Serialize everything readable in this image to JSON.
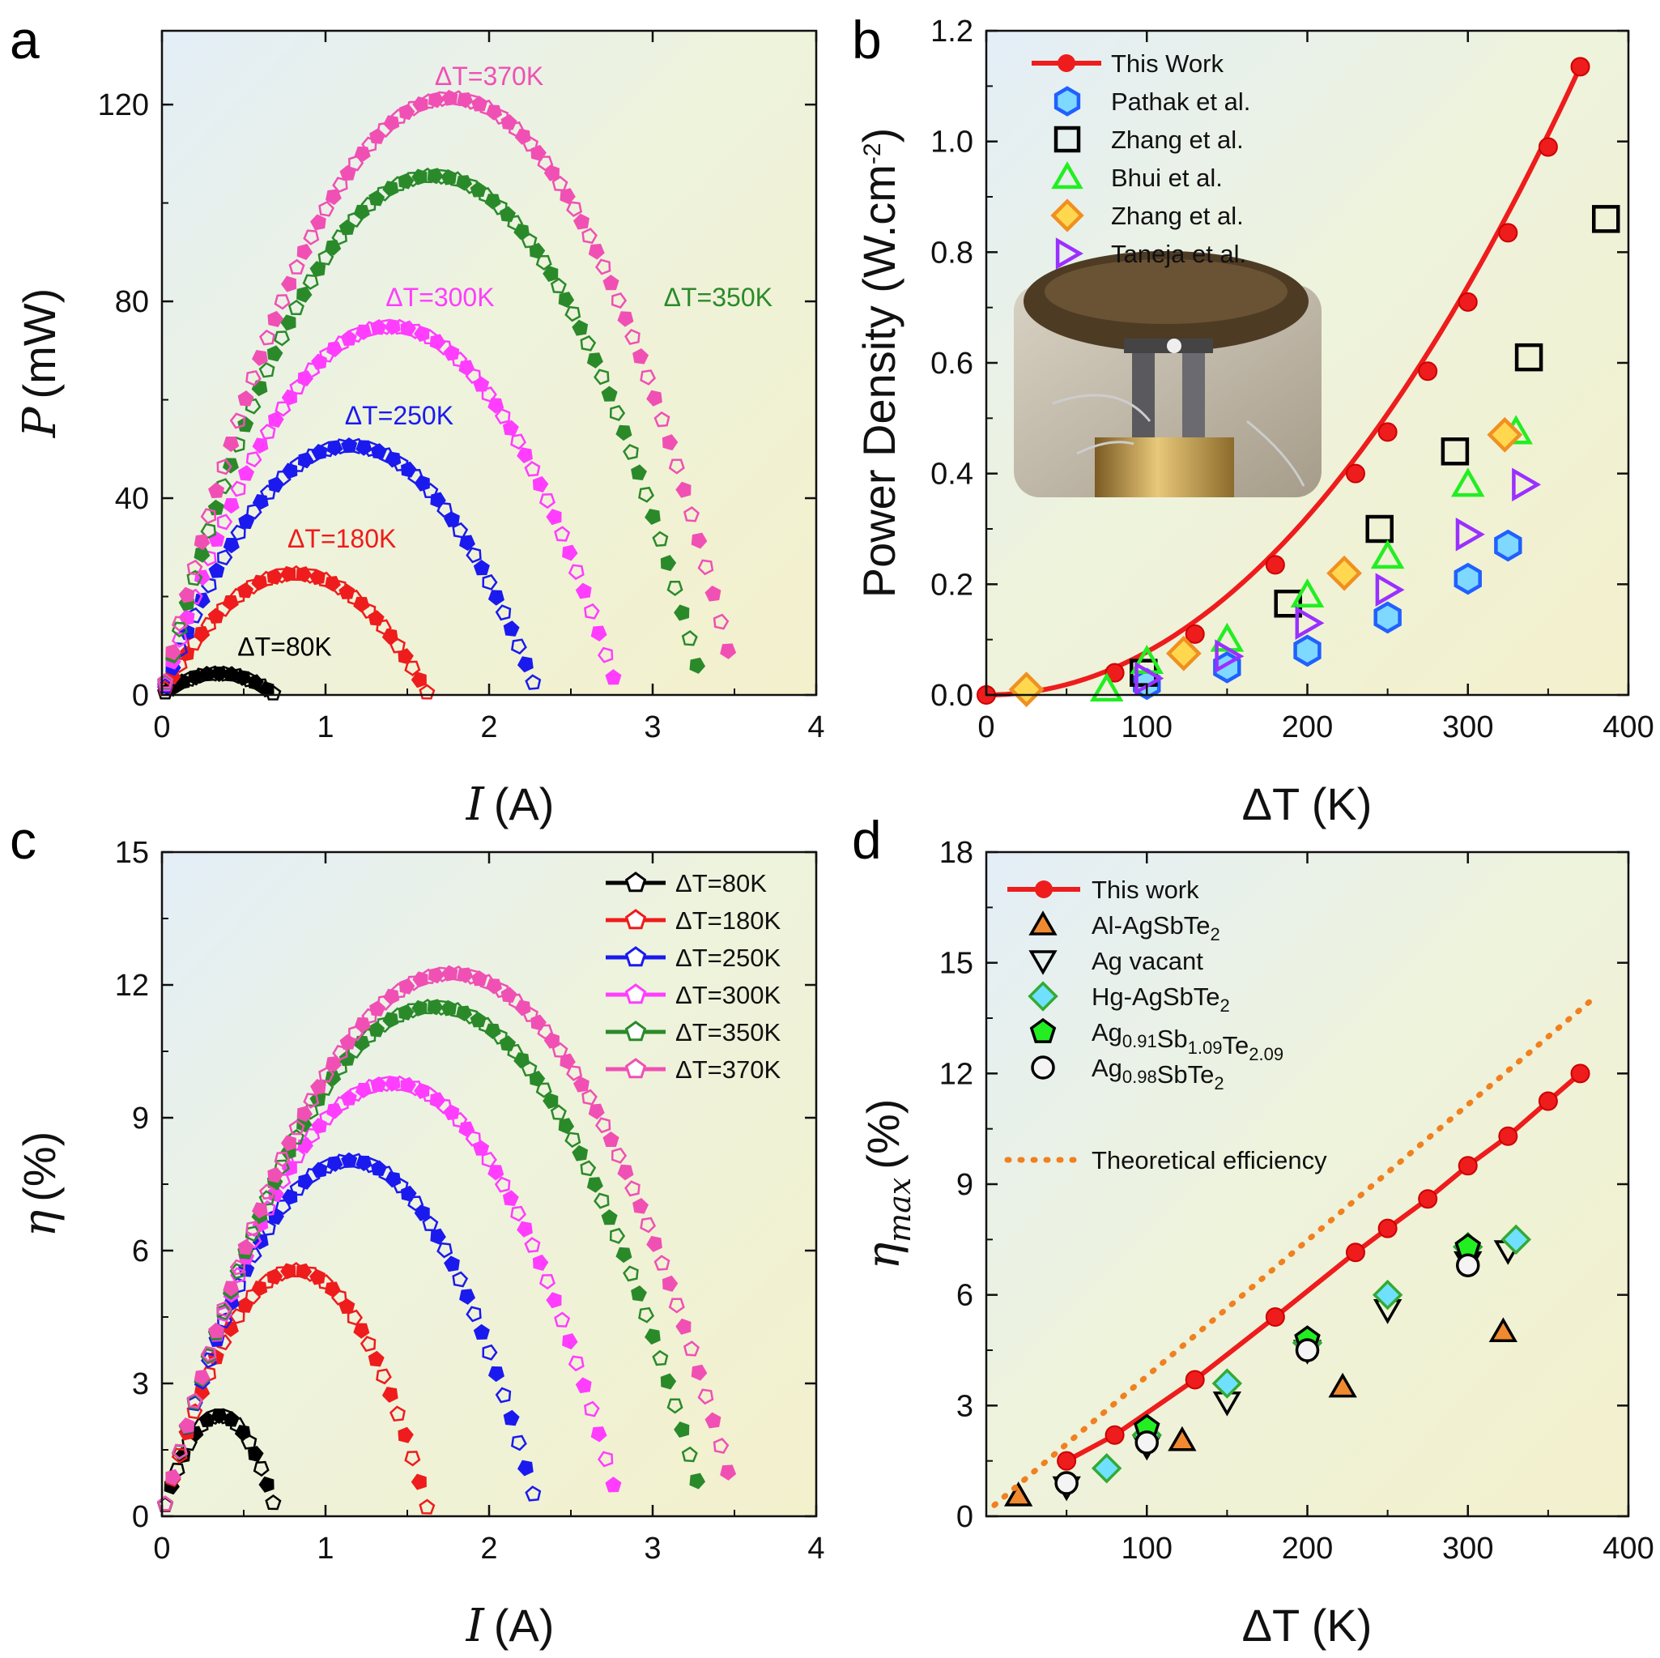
{
  "colors": {
    "dT80": "#000000",
    "dT180": "#ee1c1c",
    "dT250": "#1a1aee",
    "dT300": "#ff3dff",
    "dT350": "#2a8a2a",
    "dT370": "#f050b4",
    "this_work": "#ee1c1c",
    "theoretical": "#f08020"
  },
  "chart_data": [
    {
      "panel": "a",
      "type": "scatter",
      "xlabel": {
        "symbol": "I",
        "unit": "(A)"
      },
      "ylabel": {
        "symbol": "P",
        "unit": "(mW)"
      },
      "xlim": [
        0,
        4
      ],
      "ylim": [
        0,
        135
      ],
      "xticks": [
        "0",
        "1",
        "2",
        "3",
        "4"
      ],
      "yticks": [
        "0",
        "40",
        "80",
        "120"
      ],
      "series": [
        {
          "name": "ΔT=80K",
          "color": "#000000",
          "Imax": 0.68,
          "peak": 4.3,
          "end": 0.3
        },
        {
          "name": "ΔT=180K",
          "color": "#ee1c1c",
          "Imax": 1.62,
          "peak": 24.5,
          "end": 0.5
        },
        {
          "name": "ΔT=250K",
          "color": "#1a1aee",
          "Imax": 2.27,
          "peak": 50,
          "end": 2.5
        },
        {
          "name": "ΔT=300K",
          "color": "#ff3dff",
          "Imax": 2.76,
          "peak": 74,
          "end": 3.5
        },
        {
          "name": "ΔT=350K",
          "color": "#2a8a2a",
          "Imax": 3.27,
          "peak": 104,
          "end": 6
        },
        {
          "name": "ΔT=370K",
          "color": "#f050b4",
          "Imax": 3.46,
          "peak": 119,
          "end": 9
        }
      ],
      "annotations": [
        {
          "text": "ΔT=80K",
          "color": "#000000",
          "x": 0.75,
          "y": 8
        },
        {
          "text": "ΔT=180K",
          "color": "#ee1c1c",
          "x": 1.1,
          "y": 30
        },
        {
          "text": "ΔT=250K",
          "color": "#1a1aee",
          "x": 1.45,
          "y": 55
        },
        {
          "text": "ΔT=300K",
          "color": "#ff3dff",
          "x": 1.7,
          "y": 79
        },
        {
          "text": "ΔT=350K",
          "color": "#2a8a2a",
          "x": 3.4,
          "y": 79
        },
        {
          "text": "ΔT=370K",
          "color": "#f050b4",
          "x": 2.0,
          "y": 124
        }
      ]
    },
    {
      "panel": "b",
      "type": "scatter",
      "xlabel": "ΔT (K)",
      "ylabel": "Power Density (W.cm⁻²)",
      "ylabel_parts": {
        "main": "Power Density (W.cm",
        "sup": "-2",
        "close": ")"
      },
      "xlim": [
        0,
        400
      ],
      "ylim": [
        0,
        1.2
      ],
      "xticks": [
        "0",
        "100",
        "200",
        "300",
        "400"
      ],
      "yticks": [
        "0.0",
        "0.2",
        "0.4",
        "0.6",
        "0.8",
        "1.0",
        "1.2"
      ],
      "series": [
        {
          "name": "This Work",
          "marker": "circle-line",
          "color": "#ee1c1c",
          "x": [
            0,
            80,
            130,
            180,
            230,
            250,
            275,
            300,
            325,
            350,
            370
          ],
          "y": [
            0.0,
            0.04,
            0.11,
            0.235,
            0.4,
            0.475,
            0.585,
            0.71,
            0.835,
            0.99,
            1.135
          ]
        },
        {
          "name": "Pathak et al.",
          "marker": "hexagon",
          "color": "#2060ff",
          "fill": "#7fd8ff",
          "x": [
            100,
            150,
            200,
            250,
            300,
            325
          ],
          "y": [
            0.02,
            0.05,
            0.08,
            0.14,
            0.21,
            0.27
          ]
        },
        {
          "name": "Zhang et al.",
          "marker": "square",
          "color": "#000000",
          "fill": "none",
          "x": [
            98,
            188,
            245,
            292,
            338,
            386
          ],
          "y": [
            0.04,
            0.165,
            0.3,
            0.44,
            0.61,
            0.86
          ]
        },
        {
          "name": "Bhui et al.",
          "marker": "triangle-up",
          "color": "#22ee22",
          "fill": "none",
          "x": [
            75,
            100,
            150,
            200,
            250,
            300,
            330
          ],
          "y": [
            0.01,
            0.06,
            0.1,
            0.18,
            0.25,
            0.38,
            0.475
          ]
        },
        {
          "name": "Zhang et al.",
          "marker": "diamond",
          "color": "#f09020",
          "fill": "#ffd850",
          "x": [
            25,
            123,
            223,
            323
          ],
          "y": [
            0.01,
            0.075,
            0.22,
            0.47
          ]
        },
        {
          "name": "Taneja et al.",
          "marker": "triangle-right",
          "color": "#9a30ff",
          "fill": "none",
          "x": [
            100,
            150,
            200,
            250,
            300,
            335
          ],
          "y": [
            0.03,
            0.07,
            0.13,
            0.19,
            0.29,
            0.38
          ]
        }
      ]
    },
    {
      "panel": "c",
      "type": "scatter",
      "xlabel": {
        "symbol": "I",
        "unit": "(A)"
      },
      "ylabel": {
        "symbol": "η",
        "unit": "(%)"
      },
      "xlim": [
        0,
        4
      ],
      "ylim": [
        0,
        15
      ],
      "xticks": [
        "0",
        "1",
        "2",
        "3",
        "4"
      ],
      "yticks": [
        "0",
        "3",
        "6",
        "9",
        "12",
        "15"
      ],
      "series": [
        {
          "name": "ΔT=80K",
          "color": "#000000",
          "Imax": 0.68,
          "peak": 2.2,
          "end": 0.3
        },
        {
          "name": "ΔT=180K",
          "color": "#ee1c1c",
          "Imax": 1.62,
          "peak": 5.5,
          "end": 0.2
        },
        {
          "name": "ΔT=250K",
          "color": "#1a1aee",
          "Imax": 2.27,
          "peak": 7.9,
          "end": 0.5
        },
        {
          "name": "ΔT=300K",
          "color": "#ff3dff",
          "Imax": 2.76,
          "peak": 9.6,
          "end": 0.7
        },
        {
          "name": "ΔT=350K",
          "color": "#2a8a2a",
          "Imax": 3.27,
          "peak": 11.3,
          "end": 0.8
        },
        {
          "name": "ΔT=370K",
          "color": "#f050b4",
          "Imax": 3.46,
          "peak": 12.0,
          "end": 1.0
        }
      ]
    },
    {
      "panel": "d",
      "type": "scatter",
      "xlabel": "ΔT (K)",
      "ylabel": {
        "symbol": "η",
        "sub": "max",
        "unit": "(%)"
      },
      "xlim": [
        0,
        400
      ],
      "ylim": [
        0,
        18
      ],
      "xticks": [
        "100",
        "200",
        "300",
        "400"
      ],
      "yticks": [
        "0",
        "3",
        "6",
        "9",
        "12",
        "15",
        "18"
      ],
      "series": [
        {
          "name": "This work",
          "marker": "circle-line",
          "color": "#ee1c1c",
          "x": [
            50,
            80,
            130,
            180,
            230,
            250,
            275,
            300,
            325,
            350,
            370
          ],
          "y": [
            1.5,
            2.2,
            3.7,
            5.4,
            7.15,
            7.8,
            8.6,
            9.5,
            10.3,
            11.25,
            12.0
          ]
        },
        {
          "name": "Al-AgSbTe",
          "sub": "2",
          "marker": "triangle-up",
          "color": "#000000",
          "fill": "#f08a30",
          "x": [
            20,
            122,
            222,
            322
          ],
          "y": [
            0.55,
            2.05,
            3.5,
            5.0
          ]
        },
        {
          "name": "Ag vacant",
          "marker": "triangle-down",
          "color": "#000000",
          "fill": "none",
          "x": [
            50,
            100,
            150,
            200,
            250,
            300,
            325
          ],
          "y": [
            0.8,
            1.9,
            3.1,
            4.5,
            5.6,
            6.9,
            7.2
          ]
        },
        {
          "name": "Hg-AgSbTe",
          "sub": "2",
          "marker": "diamond",
          "color": "#33aa33",
          "fill": "#70e0ff",
          "x": [
            75,
            100,
            150,
            200,
            250,
            300,
            330
          ],
          "y": [
            1.3,
            2.2,
            3.6,
            4.7,
            6.0,
            7.3,
            7.5
          ]
        },
        {
          "name": "Ag0.91Sb1.09Te2.09",
          "parts": [
            [
              "Ag",
              ""
            ],
            [
              "0.91",
              "sub"
            ],
            [
              "Sb",
              ""
            ],
            [
              "1.09",
              "sub"
            ],
            [
              "Te",
              ""
            ],
            [
              "2.09",
              "sub"
            ]
          ],
          "marker": "pentagon",
          "color": "#000000",
          "fill": "#22ee22",
          "x": [
            100,
            200,
            300
          ],
          "y": [
            2.4,
            4.8,
            7.3
          ]
        },
        {
          "name": "Ag0.98SbTe2",
          "parts": [
            [
              "Ag",
              ""
            ],
            [
              "0.98",
              "sub"
            ],
            [
              "SbTe",
              ""
            ],
            [
              "2",
              "sub"
            ]
          ],
          "marker": "circle",
          "color": "#000000",
          "fill": "#f4f4f4",
          "x": [
            50,
            100,
            200,
            300
          ],
          "y": [
            0.9,
            2.0,
            4.5,
            6.8
          ]
        },
        {
          "name": "Theoretical efficiency",
          "marker": "dotted-line",
          "color": "#f08020",
          "x": [
            5,
            380
          ],
          "y": [
            0.3,
            14.1
          ]
        }
      ]
    }
  ]
}
